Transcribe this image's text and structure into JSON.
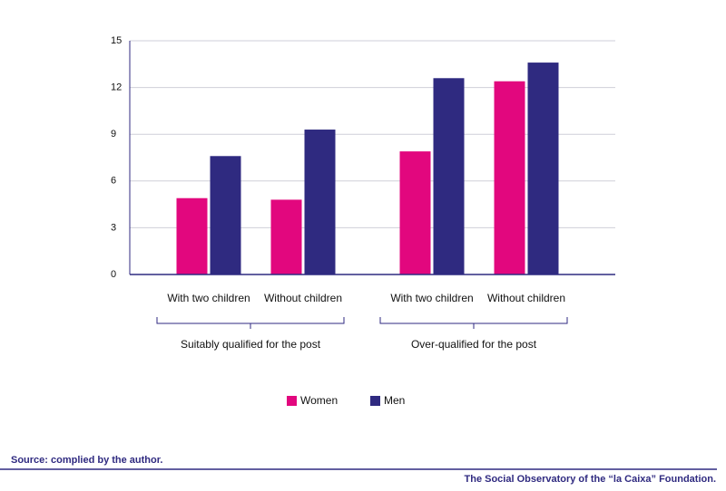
{
  "chart_data": {
    "type": "bar",
    "categories": [
      "With two children",
      "Without children",
      "With two children",
      "Without children"
    ],
    "groups": [
      "Suitably qualified for the post",
      "Over-qualified for the post"
    ],
    "series": [
      {
        "name": "Women",
        "color": "#e2077e",
        "values": [
          4.9,
          4.8,
          7.9,
          12.4
        ]
      },
      {
        "name": "Men",
        "color": "#2f2a80",
        "values": [
          7.6,
          9.3,
          12.6,
          13.6
        ]
      }
    ],
    "ylim": [
      0,
      15
    ],
    "yticks": [
      0,
      3,
      6,
      9,
      12,
      15
    ],
    "grid": true,
    "legend": "bottom"
  },
  "source": "Source: complied by the author.",
  "footer": "The Social Observatory of the “la Caixa” Foundation."
}
